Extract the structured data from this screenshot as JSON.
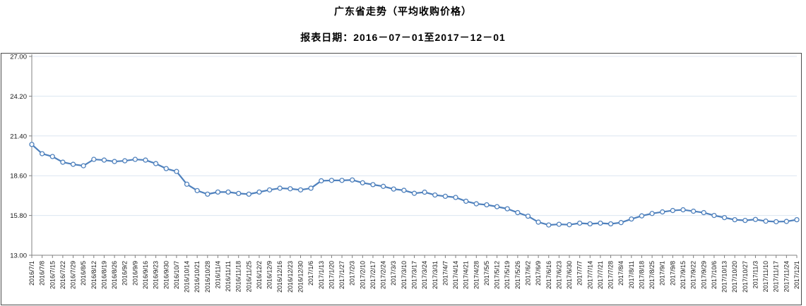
{
  "page": {
    "title": "广东省走势（平均收购价格）",
    "subtitle": "报表日期：2016－07－01至2017－12－01"
  },
  "chart_data": {
    "type": "line",
    "title": "广东省走势（平均收购价格）",
    "subtitle": "报表日期：2016－07－01至2017－12－01",
    "xlabel": "",
    "ylabel": "",
    "ylim": [
      13.0,
      27.0
    ],
    "y_tick_step": 2.8,
    "y_ticks": [
      "27.00",
      "24.20",
      "21.40",
      "18.60",
      "15.80",
      "13.00"
    ],
    "grid": "horizontal",
    "legend": "none",
    "marker": "circle-hollow",
    "line_color": "#4F81BD",
    "marker_fill": "#FFFFFF",
    "grid_color": "#DCE6F1",
    "axis_color": "#808080",
    "label_color": "#1a1a1a",
    "categories": [
      "2016/7/1",
      "2016/7/8",
      "2016/7/15",
      "2016/7/22",
      "2016/7/29",
      "2016/8/5",
      "2016/8/12",
      "2016/8/19",
      "2016/8/26",
      "2016/9/2",
      "2016/9/9",
      "2016/9/16",
      "2016/9/23",
      "2016/9/30",
      "2016/10/7",
      "2016/10/14",
      "2016/10/21",
      "2016/10/28",
      "2016/11/4",
      "2016/11/11",
      "2016/11/18",
      "2016/11/25",
      "2016/12/2",
      "2016/12/9",
      "2016/12/16",
      "2016/12/23",
      "2016/12/30",
      "2017/1/6",
      "2017/1/13",
      "2017/1/20",
      "2017/1/27",
      "2017/2/3",
      "2017/2/10",
      "2017/2/17",
      "2017/2/24",
      "2017/3/3",
      "2017/3/10",
      "2017/3/17",
      "2017/3/24",
      "2017/3/31",
      "2017/4/7",
      "2017/4/14",
      "2017/4/21",
      "2017/4/28",
      "2017/5/5",
      "2017/5/12",
      "2017/5/19",
      "2017/5/26",
      "2017/6/2",
      "2017/6/9",
      "2017/6/16",
      "2017/6/23",
      "2017/6/30",
      "2017/7/7",
      "2017/7/14",
      "2017/7/21",
      "2017/7/28",
      "2017/8/4",
      "2017/8/11",
      "2017/8/18",
      "2017/8/25",
      "2017/9/1",
      "2017/9/8",
      "2017/9/15",
      "2017/9/22",
      "2017/9/29",
      "2017/10/6",
      "2017/10/13",
      "2017/10/20",
      "2017/10/27",
      "2017/11/3",
      "2017/11/10",
      "2017/11/17",
      "2017/11/24",
      "2017/12/1"
    ],
    "values": [
      20.8,
      20.15,
      19.95,
      19.55,
      19.4,
      19.3,
      19.75,
      19.7,
      19.6,
      19.65,
      19.75,
      19.7,
      19.45,
      19.1,
      18.9,
      18.0,
      17.55,
      17.3,
      17.45,
      17.45,
      17.35,
      17.3,
      17.45,
      17.6,
      17.72,
      17.68,
      17.6,
      17.72,
      18.24,
      18.27,
      18.27,
      18.3,
      18.1,
      17.97,
      17.85,
      17.66,
      17.57,
      17.36,
      17.44,
      17.24,
      17.15,
      17.07,
      16.8,
      16.62,
      16.55,
      16.42,
      16.27,
      16.0,
      15.75,
      15.33,
      15.13,
      15.18,
      15.15,
      15.26,
      15.21,
      15.26,
      15.21,
      15.3,
      15.55,
      15.77,
      15.94,
      16.05,
      16.15,
      16.2,
      16.1,
      16.0,
      15.8,
      15.65,
      15.5,
      15.45,
      15.52,
      15.4,
      15.36,
      15.38,
      15.5
    ]
  }
}
